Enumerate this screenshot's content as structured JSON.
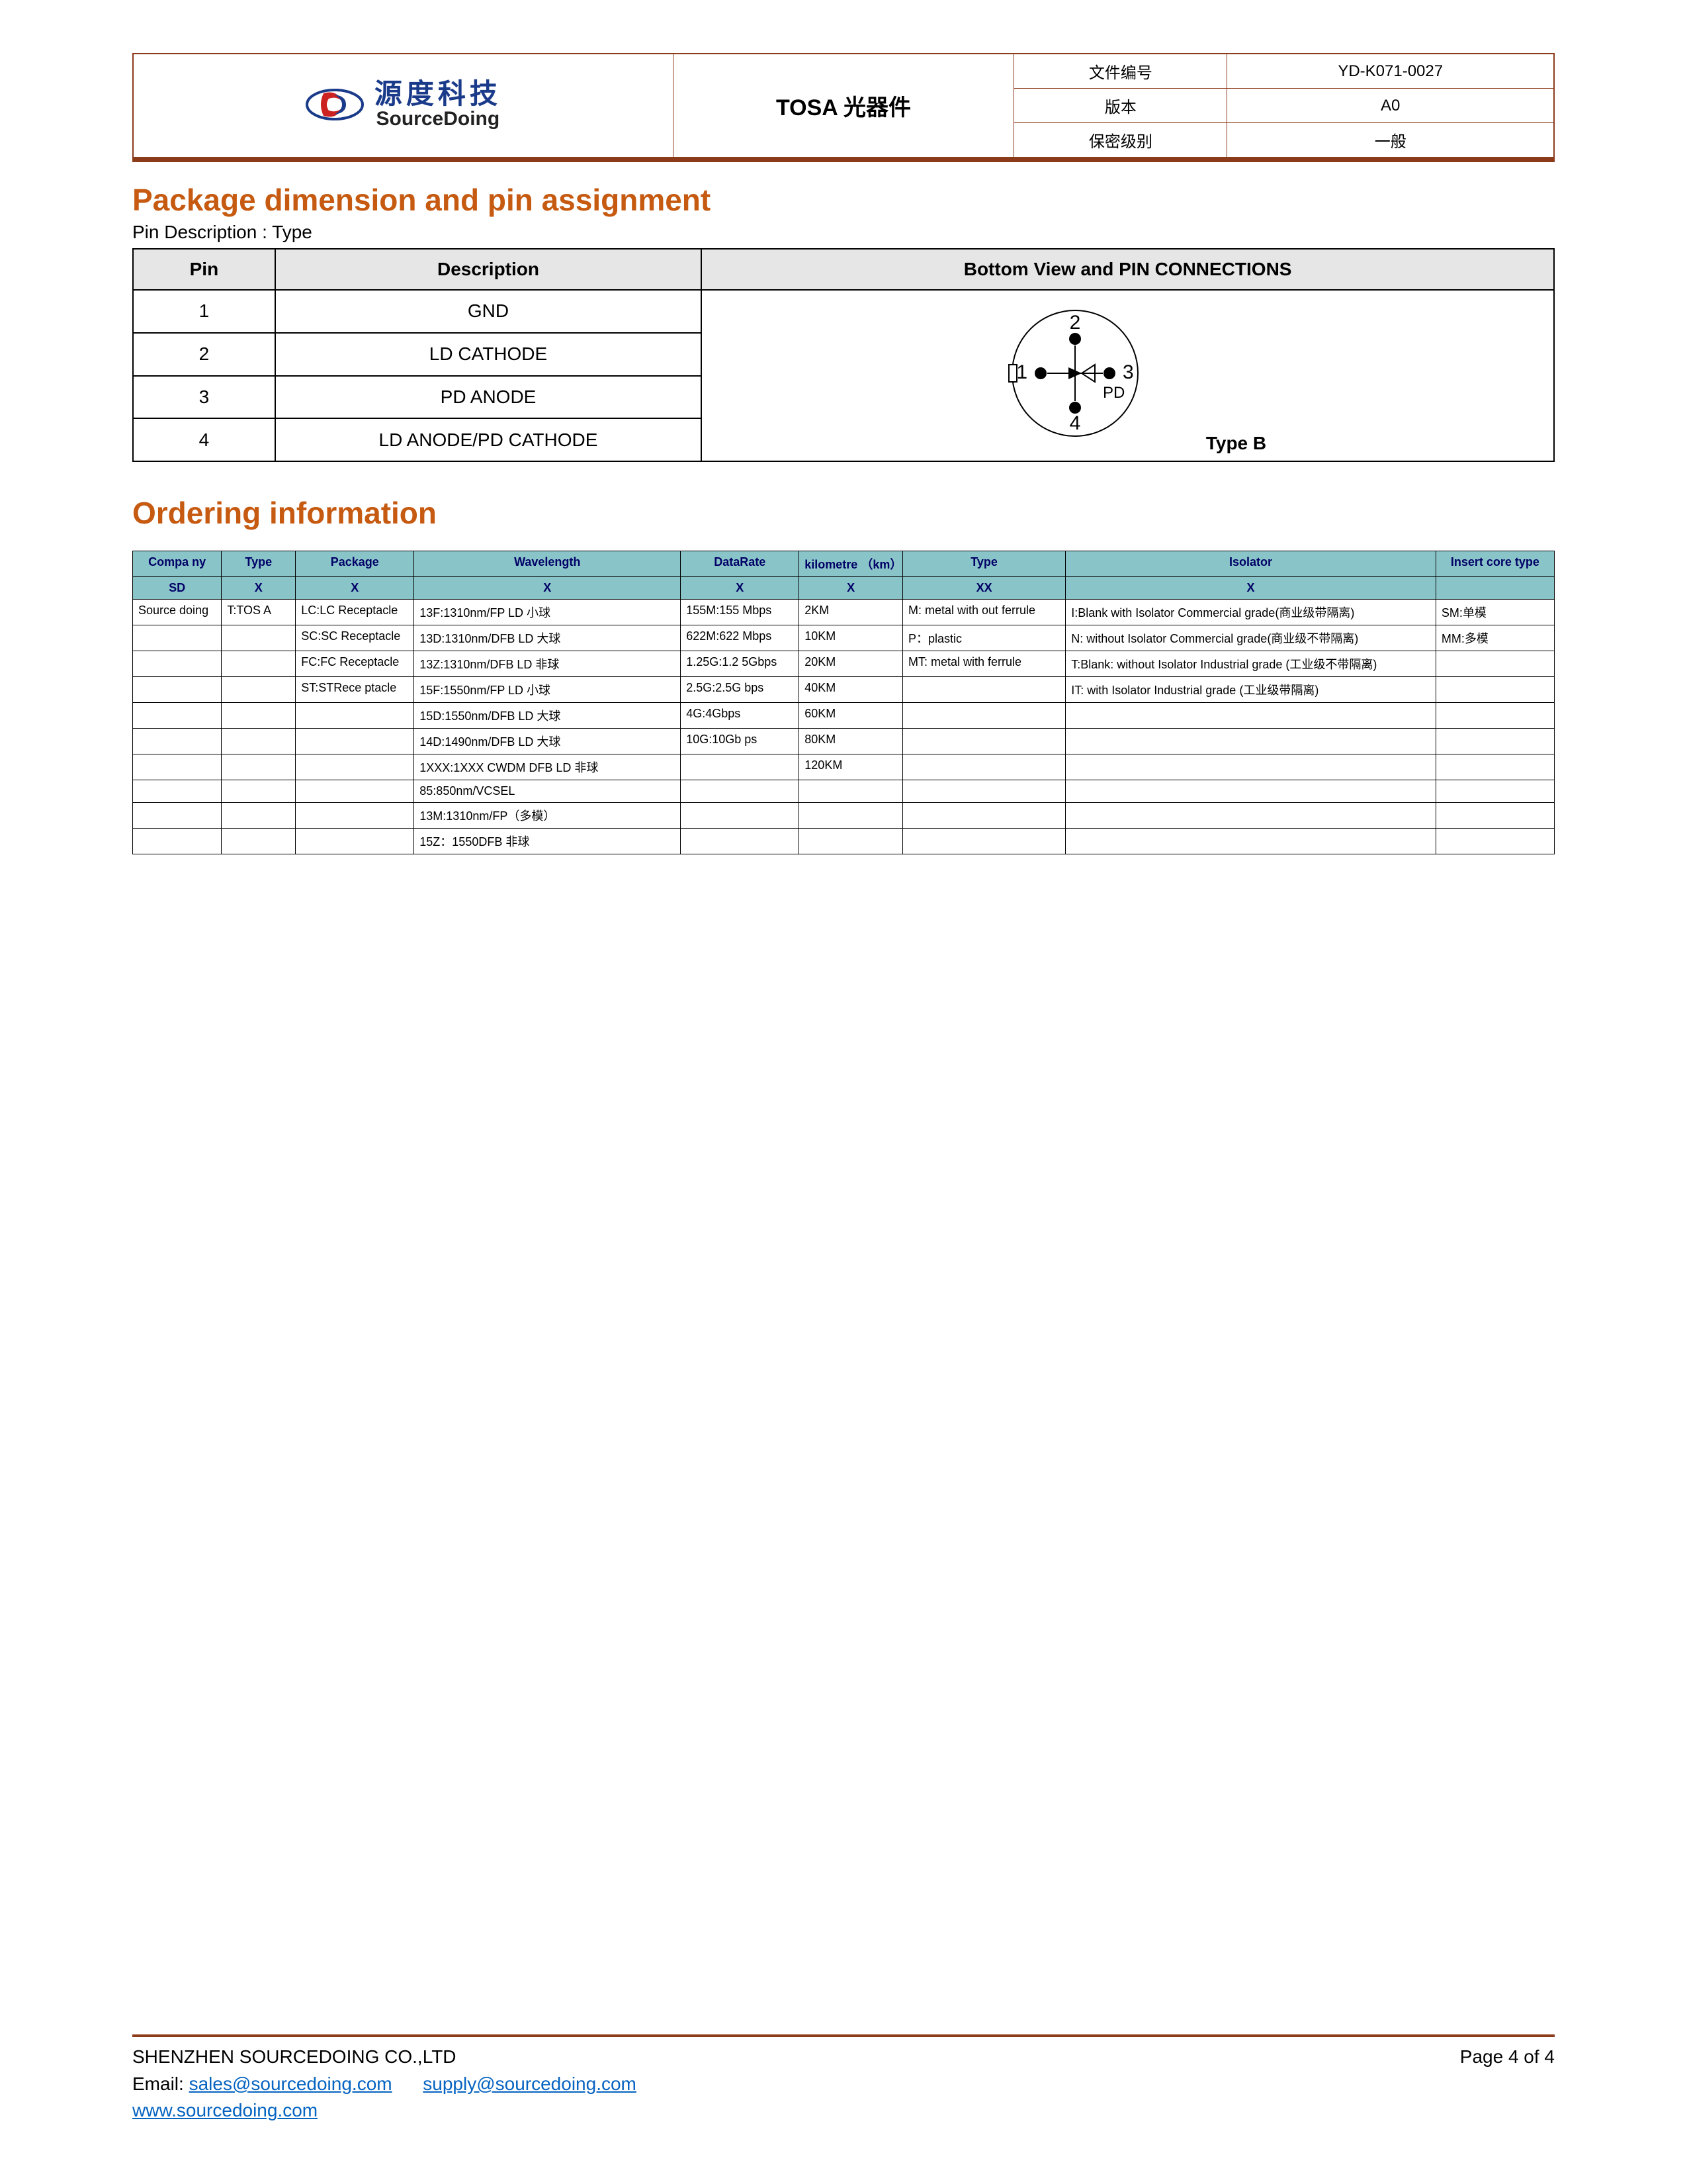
{
  "header": {
    "logo_cn": "源度科技",
    "logo_en": "SourceDoing",
    "title": "TOSA 光器件",
    "rows": [
      {
        "label": "文件编号",
        "value": "YD-K071-0027"
      },
      {
        "label": "版本",
        "value": "A0"
      },
      {
        "label": "保密级别",
        "value": "一般"
      }
    ],
    "rule_color": "#8b3a1a"
  },
  "section1": {
    "heading": "Package dimension and pin assignment",
    "subtext": "Pin Description : Type",
    "pin_header": "Pin",
    "desc_header": "Description",
    "view_header": "Bottom View and PIN CONNECTIONS",
    "pins": [
      {
        "pin": "1",
        "desc": "GND"
      },
      {
        "pin": "2",
        "desc": "LD CATHODE"
      },
      {
        "pin": "3",
        "desc": "PD ANODE"
      },
      {
        "pin": "4",
        "desc": "LD ANODE/PD CATHODE"
      }
    ],
    "diagram": {
      "type_label": "Type B",
      "pd_label": "PD",
      "pins": [
        "1",
        "2",
        "3",
        "4"
      ],
      "circle_stroke": "#000",
      "pin_fill": "#000"
    }
  },
  "section2": {
    "heading": "Ordering information",
    "table": {
      "header_bg": "#89c4c9",
      "header_fg": "#000066",
      "columns": [
        "Compa ny",
        "Type",
        "Package",
        "Wavelength",
        "DataRate",
        "kilometre （km）",
        "Type",
        "Isolator",
        "Insert core type"
      ],
      "codes": [
        "SD",
        "X",
        "X",
        "X",
        "X",
        "X",
        "XX",
        "X",
        ""
      ],
      "rows": [
        [
          "Source doing",
          "T:TOS A",
          "LC:LC Receptacle",
          "13F:1310nm/FP LD 小球",
          "155M:155 Mbps",
          "2KM",
          "M: metal with out ferrule",
          "I:Blank with Isolator Commercial grade(商业级带隔离)",
          "SM:单模"
        ],
        [
          "",
          "",
          "SC:SC Receptacle",
          "13D:1310nm/DFB LD 大球",
          "622M:622 Mbps",
          "10KM",
          "P：plastic",
          "N: without Isolator Commercial grade(商业级不带隔离)",
          "MM:多模"
        ],
        [
          "",
          "",
          "FC:FC Receptacle",
          "13Z:1310nm/DFB LD 非球",
          "1.25G:1.2 5Gbps",
          "20KM",
          "MT: metal with ferrule",
          "T:Blank: without Isolator Industrial grade (工业级不带隔离)",
          ""
        ],
        [
          "",
          "",
          "ST:STRece ptacle",
          "15F:1550nm/FP LD 小球",
          "2.5G:2.5G bps",
          "40KM",
          "",
          "IT: with Isolator Industrial grade (工业级带隔离)",
          ""
        ],
        [
          "",
          "",
          "",
          "15D:1550nm/DFB LD 大球",
          "4G:4Gbps",
          "60KM",
          "",
          "",
          ""
        ],
        [
          "",
          "",
          "",
          "14D:1490nm/DFB LD 大球",
          "10G:10Gb ps",
          "80KM",
          "",
          "",
          ""
        ],
        [
          "",
          "",
          "",
          "1XXX:1XXX CWDM DFB LD 非球",
          "",
          "120KM",
          "",
          "",
          ""
        ],
        [
          "",
          "",
          "",
          "85:850nm/VCSEL",
          "",
          "",
          "",
          "",
          ""
        ],
        [
          "",
          "",
          "",
          "13M:1310nm/FP（多模）",
          "",
          "",
          "",
          "",
          ""
        ],
        [
          "",
          "",
          "",
          "15Z：1550DFB 非球",
          "",
          "",
          "",
          "",
          ""
        ]
      ]
    }
  },
  "footer": {
    "company": "SHENZHEN SOURCEDOING CO.,LTD",
    "email_label": "Email:",
    "email1": "sales@sourcedoing.com",
    "email2": "supply@sourcedoing.com",
    "website": "www.sourcedoing.com",
    "page": "Page 4 of 4"
  }
}
